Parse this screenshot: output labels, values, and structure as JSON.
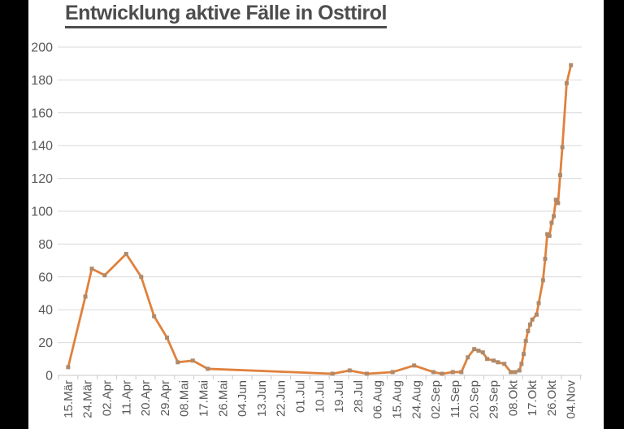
{
  "title": {
    "text": "Entwicklung aktive Fälle in Osttirol"
  },
  "colors": {
    "background": "#000000",
    "slide_background": "#ffffff",
    "title_text": "#4d4d4d",
    "axis_label": "#595959",
    "gridline": "#d9d9d9",
    "axis_line": "#c9c9c9",
    "series_line": "#e0813c",
    "series_marker": "#ae8a6b"
  },
  "chart_data": {
    "type": "line",
    "title": "Entwicklung aktive Fälle in Osttirol",
    "xlabel": "",
    "ylabel": "",
    "ylim": [
      0,
      200
    ],
    "y_ticks": [
      0,
      20,
      40,
      60,
      80,
      100,
      120,
      140,
      160,
      180,
      200
    ],
    "grid": "horizontal",
    "legend": "none",
    "x_tick_labels": [
      "15.Mär",
      "24.Mär",
      "02.Apr",
      "11.Apr",
      "20.Apr",
      "29.Apr",
      "08.Mai",
      "17.Mai",
      "26.Mai",
      "04.Jun",
      "13.Jun",
      "22.Jun",
      "01.Jul",
      "10.Jul",
      "19.Jul",
      "28.Jul",
      "06.Aug",
      "15.Aug",
      "24.Aug",
      "02.Sep",
      "11.Sep",
      "20.Sep",
      "29.Sep",
      "08.Okt",
      "17.Okt",
      "26.Okt",
      "04.Nov"
    ],
    "x_tick_interval_days": 9,
    "x_label_rotation_deg": -90,
    "series": [
      {
        "name": "aktive Fälle",
        "marker": "square",
        "points_day_value": [
          [
            0,
            5
          ],
          [
            8,
            48
          ],
          [
            11,
            65
          ],
          [
            17,
            61
          ],
          [
            27,
            74
          ],
          [
            34,
            60
          ],
          [
            40,
            36
          ],
          [
            46,
            23
          ],
          [
            51,
            8
          ],
          [
            58,
            9
          ],
          [
            65,
            4
          ],
          [
            123,
            1
          ],
          [
            131,
            3
          ],
          [
            139,
            1
          ],
          [
            151,
            2
          ],
          [
            161,
            6
          ],
          [
            170,
            2
          ],
          [
            174,
            1
          ],
          [
            179,
            2
          ],
          [
            183,
            2
          ],
          [
            186,
            11
          ],
          [
            189,
            16
          ],
          [
            191,
            15
          ],
          [
            193,
            14
          ],
          [
            195,
            10
          ],
          [
            198,
            9
          ],
          [
            200,
            8
          ],
          [
            203,
            7
          ],
          [
            206,
            2
          ],
          [
            208,
            2
          ],
          [
            210,
            3
          ],
          [
            211,
            7
          ],
          [
            212,
            13
          ],
          [
            213,
            21
          ],
          [
            214,
            27
          ],
          [
            215,
            31
          ],
          [
            216,
            34
          ],
          [
            218,
            37
          ],
          [
            219,
            44
          ],
          [
            221,
            58
          ],
          [
            222,
            71
          ],
          [
            223,
            86
          ],
          [
            224,
            85
          ],
          [
            225,
            93
          ],
          [
            226,
            97
          ],
          [
            227,
            107
          ],
          [
            228,
            105
          ],
          [
            229,
            122
          ],
          [
            230,
            139
          ],
          [
            232,
            178
          ],
          [
            234,
            189
          ]
        ]
      }
    ]
  }
}
